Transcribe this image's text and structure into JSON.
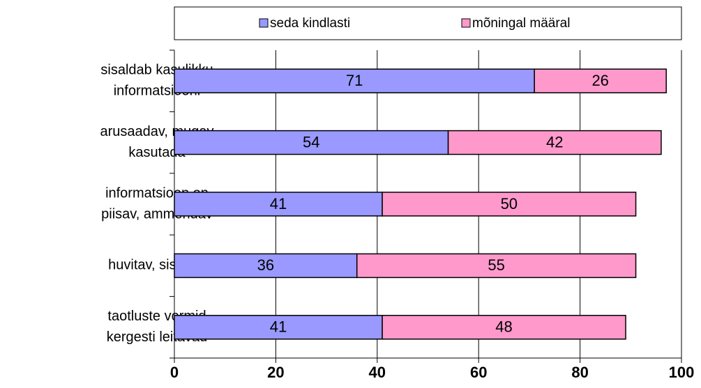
{
  "chart_data": {
    "type": "stacked-barh",
    "categories": [
      [
        "sisaldab kasulikku",
        "informatsiooni"
      ],
      [
        "arusaadav, mugav",
        "kasutada"
      ],
      [
        "informatsioon on",
        "piisav, ammendav"
      ],
      [
        "huvitav, sisukas"
      ],
      [
        "taotluste vormid",
        "kergesti leitavad"
      ]
    ],
    "series": [
      {
        "name": "seda kindlasti",
        "color": "#9999ff",
        "values": [
          71,
          54,
          41,
          36,
          41
        ]
      },
      {
        "name": "mõningal määral",
        "color": "#ff99cc",
        "values": [
          26,
          42,
          50,
          55,
          48
        ]
      }
    ],
    "xlim": [
      0,
      100
    ],
    "xticks": [
      0,
      20,
      40,
      60,
      80,
      100
    ],
    "grid": true,
    "legend": "top"
  }
}
